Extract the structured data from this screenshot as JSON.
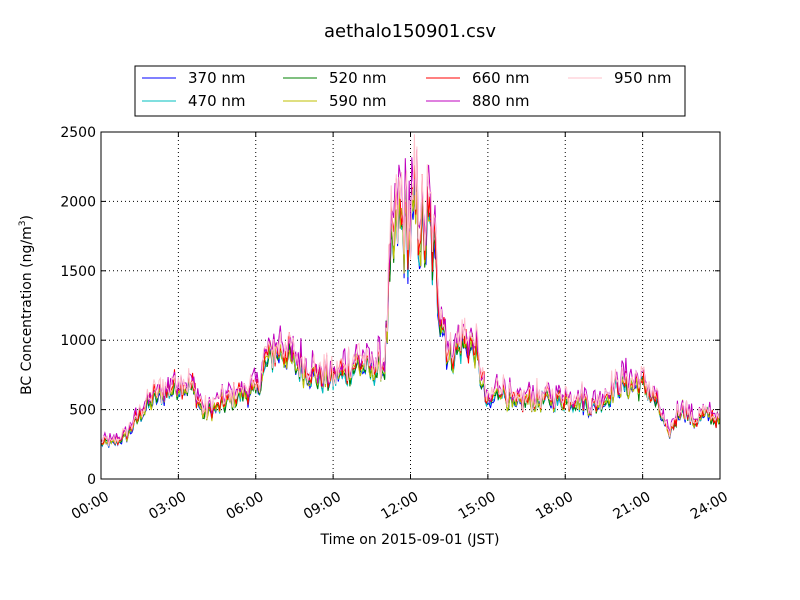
{
  "chart_data": {
    "type": "line",
    "title": "aethalo150901.csv",
    "xlabel": "Time on 2015-09-01 (JST)",
    "ylabel": "BC Concentration (ng/m",
    "ylabel_sup": "3",
    "ylabel_tail": ")",
    "xlim": [
      "00:00",
      "24:00"
    ],
    "ylim": [
      0,
      2500
    ],
    "x_ticks": [
      "00:00",
      "03:00",
      "06:00",
      "09:00",
      "12:00",
      "15:00",
      "18:00",
      "21:00",
      "24:00"
    ],
    "y_ticks": [
      0,
      500,
      1000,
      1500,
      2000,
      2500
    ],
    "grid": true,
    "legend_position": "top",
    "key_times_h": [
      0,
      0.5,
      1,
      1.5,
      2,
      2.5,
      3,
      3.5,
      4,
      4.5,
      5,
      5.5,
      6,
      6.5,
      7,
      7.5,
      8,
      8.5,
      9,
      9.5,
      10,
      10.5,
      11,
      11.25,
      11.5,
      11.75,
      12,
      12.25,
      12.5,
      12.75,
      13,
      13.5,
      14,
      14.5,
      15,
      15.5,
      16,
      16.5,
      17,
      17.5,
      18,
      18.5,
      19,
      19.5,
      20,
      20.5,
      21,
      21.5,
      22,
      22.5,
      23,
      23.5,
      24
    ],
    "base_values": [
      250,
      250,
      300,
      450,
      550,
      600,
      650,
      650,
      450,
      500,
      550,
      600,
      600,
      850,
      900,
      800,
      750,
      700,
      700,
      750,
      800,
      750,
      800,
      1500,
      1800,
      1750,
      1700,
      1850,
      1650,
      1750,
      1400,
      850,
      950,
      900,
      500,
      650,
      500,
      550,
      550,
      550,
      550,
      550,
      500,
      550,
      650,
      650,
      650,
      550,
      300,
      500,
      400,
      450,
      400
    ],
    "series": [
      {
        "name": "370 nm",
        "color": "#0000ff",
        "scale": 1.0
      },
      {
        "name": "470 nm",
        "color": "#00bfbf",
        "scale": 1.01
      },
      {
        "name": "520 nm",
        "color": "#008000",
        "scale": 1.02
      },
      {
        "name": "590 nm",
        "color": "#bfbf00",
        "scale": 1.03
      },
      {
        "name": "660 nm",
        "color": "#ff0000",
        "scale": 1.06
      },
      {
        "name": "880 nm",
        "color": "#bf00bf",
        "scale": 1.12
      },
      {
        "name": "950 nm",
        "color": "#ffc0cb",
        "scale": 1.1
      }
    ]
  }
}
